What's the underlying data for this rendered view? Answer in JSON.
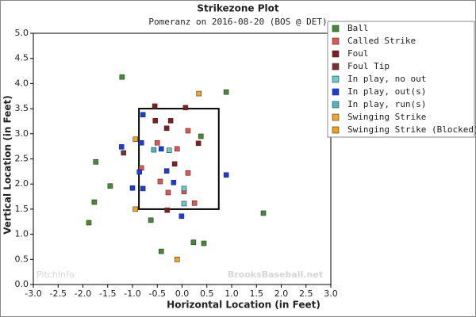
{
  "chart_data": {
    "type": "scatter",
    "title": "Strikezone Plot",
    "subtitle": "Pomeranz on 2016-08-20 (BOS @ DET)",
    "xlabel": "Horizontal Location (in Feet)",
    "ylabel": "Vertical Location (in Feet)",
    "annotations": [
      "PitchInfo",
      "BrooksBaseball.net"
    ],
    "xlim": [
      -3.0,
      3.0
    ],
    "ylim": [
      0.0,
      5.0
    ],
    "xticks": [
      {
        "value": -3.0,
        "label": "-3.0"
      },
      {
        "value": -2.5,
        "label": "-2.5"
      },
      {
        "value": -2.0,
        "label": "-2.0"
      },
      {
        "value": -1.5,
        "label": "-1.5"
      },
      {
        "value": -1.0,
        "label": "-1.0"
      },
      {
        "value": -0.5,
        "label": "-0.5"
      },
      {
        "value": 0,
        "label": "0.0"
      },
      {
        "value": 0.5,
        "label": "0.5"
      },
      {
        "value": 1.0,
        "label": "1.0"
      },
      {
        "value": 1.5,
        "label": "1.5"
      },
      {
        "value": 2.0,
        "label": "2.0"
      },
      {
        "value": 2.5,
        "label": "2.5"
      },
      {
        "value": 3.0,
        "label": "3.0"
      }
    ],
    "yticks": [
      {
        "value": 0,
        "label": "0.0"
      },
      {
        "value": 0.5,
        "label": "0.5"
      },
      {
        "value": 1.0,
        "label": "1.0"
      },
      {
        "value": 1.5,
        "label": "1.5"
      },
      {
        "value": 2.0,
        "label": "2.0"
      },
      {
        "value": 2.5,
        "label": "2.5"
      },
      {
        "value": 3.0,
        "label": "3.0"
      },
      {
        "value": 3.5,
        "label": "3.5"
      },
      {
        "value": 4.0,
        "label": "4.0"
      },
      {
        "value": 4.5,
        "label": "4.5"
      },
      {
        "value": 5.0,
        "label": "5.0"
      }
    ],
    "strike_zone": {
      "x": [
        -0.87,
        0.74
      ],
      "y": [
        1.5,
        3.5
      ]
    },
    "legend": "upper right",
    "series": [
      {
        "name": "Ball",
        "color": "#3f8f2f",
        "x": [
          -1.21,
          0.89,
          -1.74,
          -1.45,
          -1.77,
          -1.88,
          0.38,
          1.64,
          -0.63,
          0.23,
          0.44,
          -0.42
        ],
        "y": [
          4.13,
          3.83,
          2.44,
          1.96,
          1.64,
          1.23,
          2.95,
          1.42,
          1.28,
          0.84,
          0.82,
          0.66
        ]
      },
      {
        "name": "Called Strike",
        "color": "#e8554e",
        "x": [
          0.12,
          -0.82,
          0.12,
          -0.44,
          0.04,
          -0.28,
          0.25,
          -0.5,
          -0.1
        ],
        "y": [
          3.06,
          2.32,
          2.22,
          2.05,
          1.85,
          1.83,
          1.62,
          2.82,
          2.7
        ]
      },
      {
        "name": "Foul",
        "color": "#8b1a1a",
        "x": [
          -0.55,
          0.07,
          -0.23,
          -0.54,
          -0.31,
          0.33,
          -0.15,
          -0.3
        ],
        "y": [
          3.55,
          3.52,
          3.26,
          3.26,
          3.11,
          2.81,
          2.4,
          1.48
        ]
      },
      {
        "name": "Foul Tip",
        "color": "#7a2e2e",
        "x": [
          -1.18
        ],
        "y": [
          2.62
        ]
      },
      {
        "name": "In play, no out",
        "color": "#5fd0d0",
        "x": [
          -0.26,
          0.04,
          0.04
        ],
        "y": [
          2.67,
          1.91,
          1.61
        ]
      },
      {
        "name": "In play, out(s)",
        "color": "#1a3ae8",
        "x": [
          -0.79,
          -1.22,
          -0.82,
          -0.42,
          -0.31,
          -0.17,
          -1.0,
          -0.79,
          -0.01,
          0.89,
          -0.86
        ],
        "y": [
          3.38,
          2.74,
          2.82,
          2.7,
          2.26,
          2.03,
          1.92,
          1.91,
          1.36,
          2.18,
          2.24
        ]
      },
      {
        "name": "In play, run(s)",
        "color": "#48b8c8",
        "x": [
          -0.57
        ],
        "y": [
          2.68
        ]
      },
      {
        "name": "Swinging Strike",
        "color": "#f5a623",
        "x": [
          0.34,
          -0.94,
          -0.1,
          -0.94
        ],
        "y": [
          3.8,
          1.5,
          0.5,
          2.89
        ]
      },
      {
        "name": "Swinging Strike (Blocked)",
        "color": "#f0a010",
        "x": [],
        "y": []
      }
    ]
  }
}
